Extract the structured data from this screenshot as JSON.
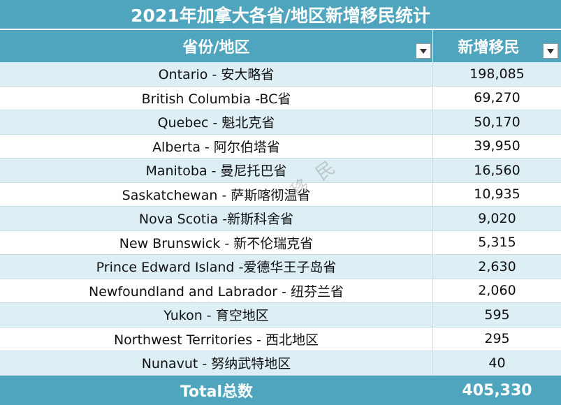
{
  "title": "2021年加拿大各省/地区新增移民统计",
  "header": {
    "col_region": "省份/地区",
    "col_new": "新增移民"
  },
  "rows": [
    {
      "region": "Ontario - 安大略省",
      "value": "198,085"
    },
    {
      "region": "British Columbia -BC省",
      "value": "69,270"
    },
    {
      "region": "Quebec - 魁北克省",
      "value": "50,170"
    },
    {
      "region": "Alberta - 阿尔伯塔省",
      "value": "39,950"
    },
    {
      "region": "Manitoba - 曼尼托巴省",
      "value": "16,560"
    },
    {
      "region": "Saskatchewan - 萨斯喀彻温省",
      "value": "10,935"
    },
    {
      "region": "Nova Scotia -新斯科舍省",
      "value": "9,020"
    },
    {
      "region": "New Brunswick - 新不伦瑞克省",
      "value": "5,315"
    },
    {
      "region": "Prince Edward Island -爱德华王子岛省",
      "value": "2,630"
    },
    {
      "region": "Newfoundland and Labrador - 纽芬兰省",
      "value": "2,060"
    },
    {
      "region": "Yukon - 育空地区",
      "value": "595"
    },
    {
      "region": "Northwest Territories - 西北地区",
      "value": "295"
    },
    {
      "region": "Nunavut - 努纳武特地区",
      "value": "40"
    }
  ],
  "total": {
    "label": "Total总数",
    "value": "405,330"
  },
  "watermark": "移民",
  "colors": {
    "header_bg": "#4fa4be",
    "stripe": "#ddeef5"
  }
}
